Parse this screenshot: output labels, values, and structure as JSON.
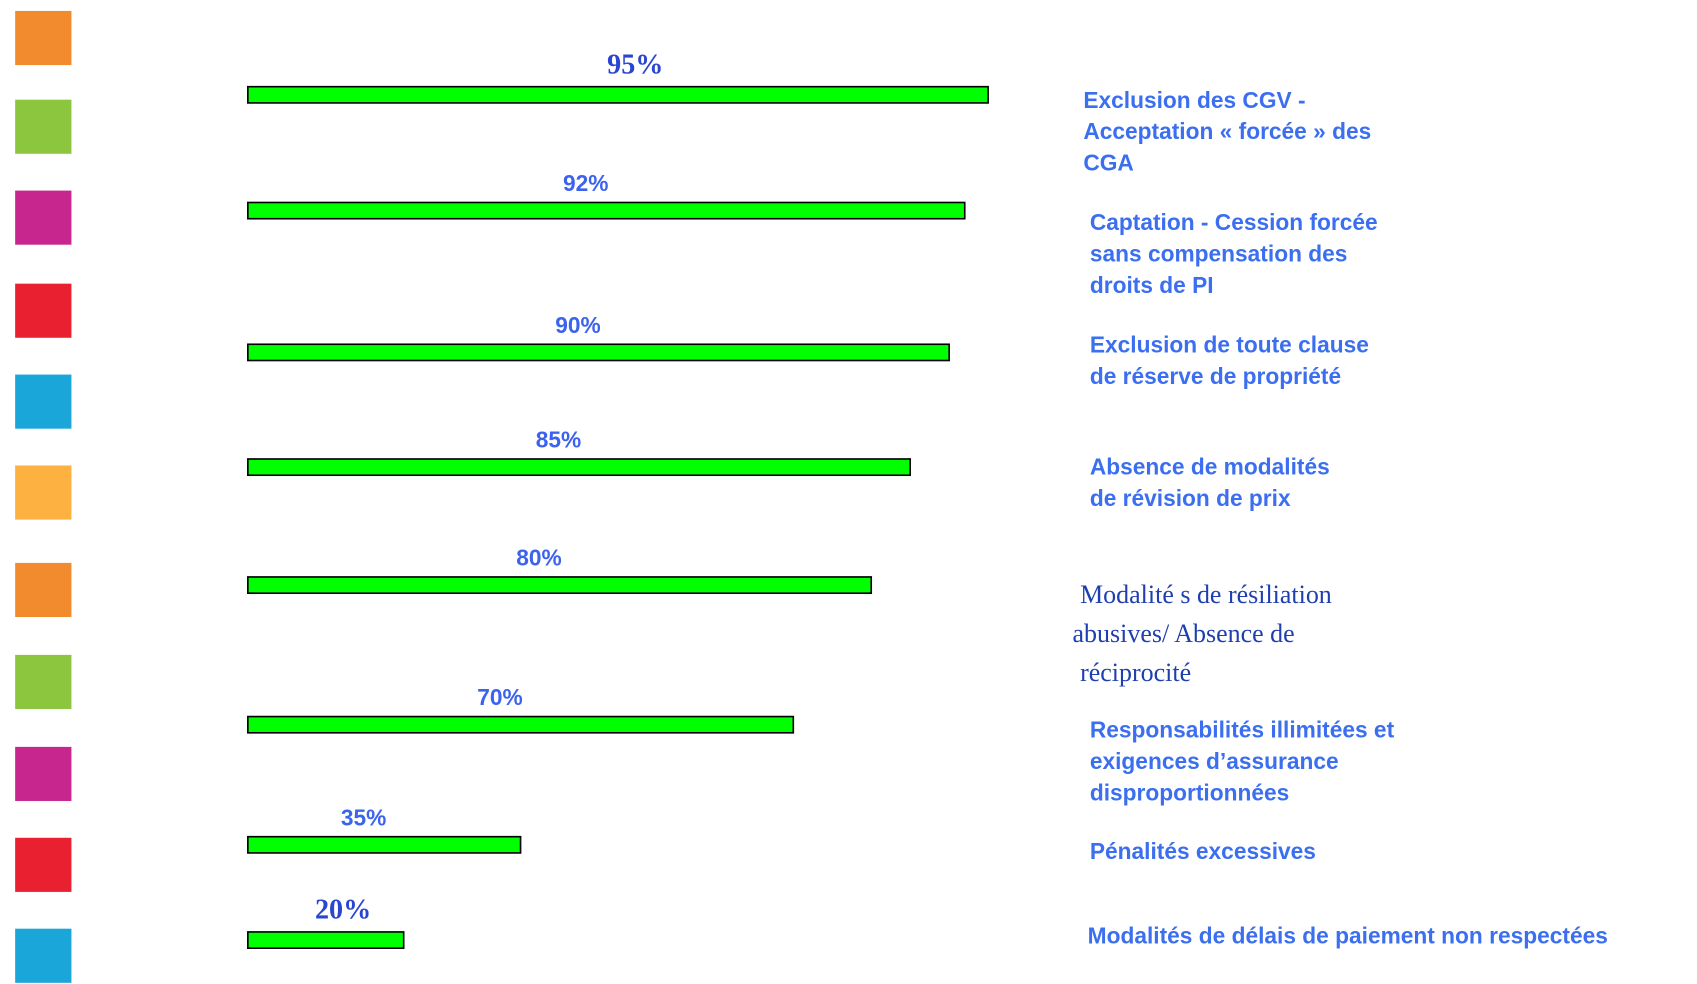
{
  "chart_data": {
    "type": "bar",
    "orientation": "horizontal",
    "color": "#00ff00",
    "categories": [
      [
        "Exclusion des CGV -",
        "Acceptation « forcée » des",
        "CGA"
      ],
      [
        "Captation - Cession forcée",
        "sans compensation des",
        "droits de PI"
      ],
      [
        "Exclusion de toute clause",
        "de réserve de propriété"
      ],
      [
        "Absence de modalités",
        "de révision de prix"
      ],
      [
        "Modalité s de résiliation",
        "abusives/ Absence de",
        "réciprocité"
      ],
      [
        "Responsabilités illimitées et",
        "exigences d’assurance",
        "disproportionnées"
      ],
      [
        "Pénalités excessives"
      ],
      [
        "Modalités de délais de paiement non respectées"
      ]
    ],
    "values": [
      95,
      92,
      90,
      85,
      80,
      70,
      35,
      20
    ],
    "value_labels": [
      "95%",
      "92%",
      "90%",
      "85%",
      "80%",
      "70%",
      "35%",
      "20%"
    ]
  }
}
